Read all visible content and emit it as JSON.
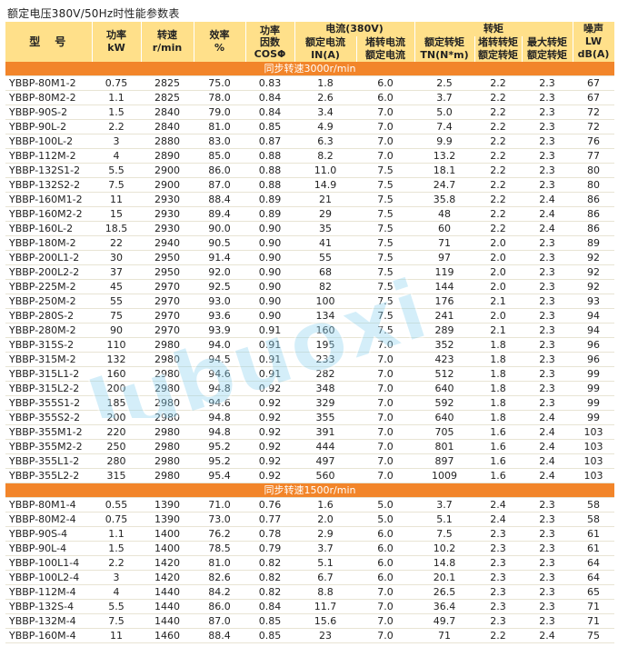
{
  "title": "额定电压380V/50Hz时性能参数表",
  "headers": {
    "model": "型　号",
    "power": [
      "功率",
      "kW"
    ],
    "speed": [
      "转速",
      "r/min"
    ],
    "efficiency": [
      "效率",
      "%"
    ],
    "pf": [
      "功率",
      "因数",
      "COSΦ"
    ],
    "current_group": "电流(380V)",
    "rated_current": [
      "额定电流",
      "IN(A)"
    ],
    "locked_current": [
      "堵转电流",
      "额定电流"
    ],
    "torque_group": "转矩",
    "rated_torque": [
      "额定转矩",
      "TN(N*m)"
    ],
    "locked_torque": [
      "堵转转矩",
      "额定转矩"
    ],
    "max_torque": [
      "最大转矩",
      "额定转矩"
    ],
    "noise": [
      "噪声",
      "LW dB(A)"
    ]
  },
  "sections": [
    {
      "label": "同步转速3000r/min",
      "rows": [
        [
          "YBBP-80M1-2",
          "0.75",
          "2825",
          "75.0",
          "0.83",
          "1.8",
          "6.0",
          "2.5",
          "2.2",
          "2.3",
          "67"
        ],
        [
          "YBBP-80M2-2",
          "1.1",
          "2825",
          "78.0",
          "0.84",
          "2.6",
          "6.0",
          "3.7",
          "2.2",
          "2.3",
          "67"
        ],
        [
          "YBBP-90S-2",
          "1.5",
          "2840",
          "79.0",
          "0.84",
          "3.4",
          "7.0",
          "5.0",
          "2.2",
          "2.3",
          "72"
        ],
        [
          "YBBP-90L-2",
          "2.2",
          "2840",
          "81.0",
          "0.85",
          "4.9",
          "7.0",
          "7.4",
          "2.2",
          "2.3",
          "72"
        ],
        [
          "YBBP-100L-2",
          "3",
          "2880",
          "83.0",
          "0.87",
          "6.3",
          "7.0",
          "9.9",
          "2.2",
          "2.3",
          "76"
        ],
        [
          "YBBP-112M-2",
          "4",
          "2890",
          "85.0",
          "0.88",
          "8.2",
          "7.0",
          "13.2",
          "2.2",
          "2.3",
          "77"
        ],
        [
          "YBBP-132S1-2",
          "5.5",
          "2900",
          "86.0",
          "0.88",
          "11.0",
          "7.5",
          "18.1",
          "2.2",
          "2.3",
          "80"
        ],
        [
          "YBBP-132S2-2",
          "7.5",
          "2900",
          "87.0",
          "0.88",
          "14.9",
          "7.5",
          "24.7",
          "2.2",
          "2.3",
          "80"
        ],
        [
          "YBBP-160M1-2",
          "11",
          "2930",
          "88.4",
          "0.89",
          "21",
          "7.5",
          "35.8",
          "2.2",
          "2.4",
          "86"
        ],
        [
          "YBBP-160M2-2",
          "15",
          "2930",
          "89.4",
          "0.89",
          "29",
          "7.5",
          "48",
          "2.2",
          "2.4",
          "86"
        ],
        [
          "YBBP-160L-2",
          "18.5",
          "2930",
          "90.0",
          "0.90",
          "35",
          "7.5",
          "60",
          "2.2",
          "2.4",
          "86"
        ],
        [
          "YBBP-180M-2",
          "22",
          "2940",
          "90.5",
          "0.90",
          "41",
          "7.5",
          "71",
          "2.0",
          "2.3",
          "89"
        ],
        [
          "YBBP-200L1-2",
          "30",
          "2950",
          "91.4",
          "0.90",
          "55",
          "7.5",
          "97",
          "2.0",
          "2.3",
          "92"
        ],
        [
          "YBBP-200L2-2",
          "37",
          "2950",
          "92.0",
          "0.90",
          "68",
          "7.5",
          "119",
          "2.0",
          "2.3",
          "92"
        ],
        [
          "YBBP-225M-2",
          "45",
          "2970",
          "92.5",
          "0.90",
          "82",
          "7.5",
          "144",
          "2.0",
          "2.3",
          "92"
        ],
        [
          "YBBP-250M-2",
          "55",
          "2970",
          "93.0",
          "0.90",
          "100",
          "7.5",
          "176",
          "2.1",
          "2.3",
          "93"
        ],
        [
          "YBBP-280S-2",
          "75",
          "2970",
          "93.6",
          "0.90",
          "134",
          "7.5",
          "241",
          "2.0",
          "2.3",
          "94"
        ],
        [
          "YBBP-280M-2",
          "90",
          "2970",
          "93.9",
          "0.91",
          "160",
          "7.5",
          "289",
          "2.1",
          "2.3",
          "94"
        ],
        [
          "YBBP-315S-2",
          "110",
          "2980",
          "94.0",
          "0.91",
          "195",
          "7.0",
          "352",
          "1.8",
          "2.3",
          "96"
        ],
        [
          "YBBP-315M-2",
          "132",
          "2980",
          "94.5",
          "0.91",
          "233",
          "7.0",
          "423",
          "1.8",
          "2.3",
          "96"
        ],
        [
          "YBBP-315L1-2",
          "160",
          "2980",
          "94.6",
          "0.91",
          "282",
          "7.0",
          "512",
          "1.8",
          "2.3",
          "99"
        ],
        [
          "YBBP-315L2-2",
          "200",
          "2980",
          "94.8",
          "0.92",
          "348",
          "7.0",
          "640",
          "1.8",
          "2.3",
          "99"
        ],
        [
          "YBBP-355S1-2",
          "185",
          "2980",
          "94.6",
          "0.92",
          "329",
          "7.0",
          "592",
          "1.8",
          "2.3",
          "99"
        ],
        [
          "YBBP-355S2-2",
          "200",
          "2980",
          "94.8",
          "0.92",
          "355",
          "7.0",
          "640",
          "1.8",
          "2.4",
          "99"
        ],
        [
          "YBBP-355M1-2",
          "220",
          "2980",
          "94.8",
          "0.92",
          "391",
          "7.0",
          "705",
          "1.6",
          "2.4",
          "103"
        ],
        [
          "YBBP-355M2-2",
          "250",
          "2980",
          "95.2",
          "0.92",
          "444",
          "7.0",
          "801",
          "1.6",
          "2.4",
          "103"
        ],
        [
          "YBBP-355L1-2",
          "280",
          "2980",
          "95.2",
          "0.92",
          "497",
          "7.0",
          "897",
          "1.6",
          "2.4",
          "103"
        ],
        [
          "YBBP-355L2-2",
          "315",
          "2980",
          "95.4",
          "0.92",
          "560",
          "7.0",
          "1009",
          "1.6",
          "2.4",
          "103"
        ]
      ]
    },
    {
      "label": "同步转速1500r/min",
      "rows": [
        [
          "YBBP-80M1-4",
          "0.55",
          "1390",
          "71.0",
          "0.76",
          "1.6",
          "5.0",
          "3.7",
          "2.4",
          "2.3",
          "58"
        ],
        [
          "YBBP-80M2-4",
          "0.75",
          "1390",
          "73.0",
          "0.77",
          "2.0",
          "5.0",
          "5.1",
          "2.4",
          "2.3",
          "58"
        ],
        [
          "YBBP-90S-4",
          "1.1",
          "1400",
          "76.2",
          "0.78",
          "2.9",
          "6.0",
          "7.5",
          "2.3",
          "2.3",
          "61"
        ],
        [
          "YBBP-90L-4",
          "1.5",
          "1400",
          "78.5",
          "0.79",
          "3.7",
          "6.0",
          "10.2",
          "2.3",
          "2.3",
          "61"
        ],
        [
          "YBBP-100L1-4",
          "2.2",
          "1420",
          "81.0",
          "0.82",
          "5.1",
          "6.0",
          "14.8",
          "2.3",
          "2.3",
          "64"
        ],
        [
          "YBBP-100L2-4",
          "3",
          "1420",
          "82.6",
          "0.82",
          "6.7",
          "6.0",
          "20.1",
          "2.3",
          "2.3",
          "64"
        ],
        [
          "YBBP-112M-4",
          "4",
          "1440",
          "84.2",
          "0.82",
          "8.8",
          "7.0",
          "26.5",
          "2.3",
          "2.3",
          "65"
        ],
        [
          "YBBP-132S-4",
          "5.5",
          "1440",
          "86.0",
          "0.84",
          "11.7",
          "7.0",
          "36.4",
          "2.3",
          "2.3",
          "71"
        ],
        [
          "YBBP-132M-4",
          "7.5",
          "1440",
          "87.0",
          "0.85",
          "15.6",
          "7.0",
          "49.7",
          "2.3",
          "2.3",
          "71"
        ],
        [
          "YBBP-160M-4",
          "11",
          "1460",
          "88.4",
          "0.85",
          "23",
          "7.0",
          "71",
          "2.2",
          "2.4",
          "75"
        ]
      ]
    }
  ],
  "watermark": {
    "text": "lubuoxi",
    "colors": [
      "#0aa0d8",
      "#7fcf3a"
    ]
  }
}
